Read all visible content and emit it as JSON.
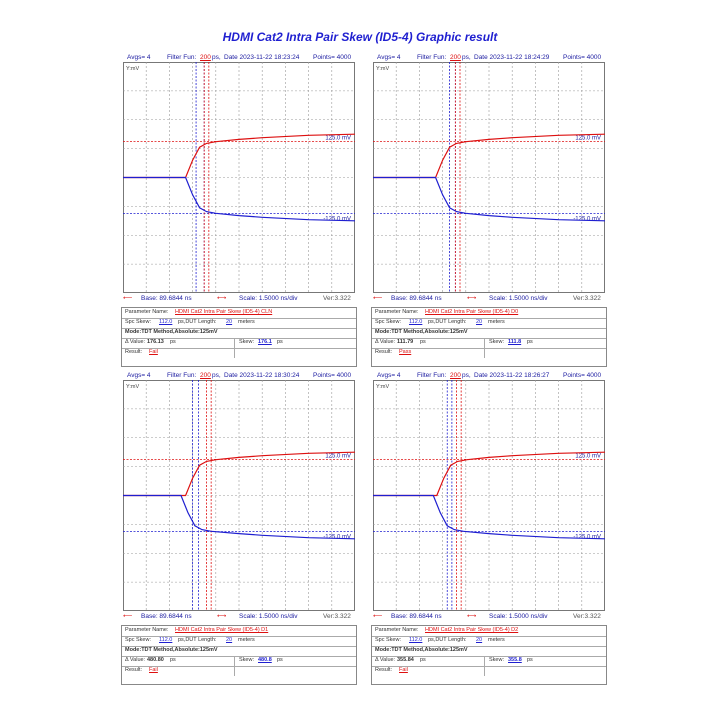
{
  "title": "HDMI Cat2 Intra Pair Skew (ID5-4) Graphic result",
  "chart_data": [
    {
      "type": "line",
      "avgs": "Avgs= 4",
      "filter_label": "Filter Fun:",
      "filter_value": "200",
      "filter_unit": "ps,",
      "date": "Date 2023-11-22 18:23:24",
      "points": "Points= 4000",
      "ylabel": "Y:mV",
      "ylim": [
        -400,
        400
      ],
      "yticks": [
        "400",
        "300",
        "200",
        "100",
        "0",
        "-100",
        "-200",
        "-300",
        "-400"
      ],
      "threshold_high_label": "125.0 mV",
      "threshold_low_label": "-125.0 mV",
      "base": "Base: 89.6844 ns",
      "scale": "Scale: 1.5000 ns/div",
      "ver": "Ver:3.322",
      "series": [
        {
          "color": "#dd1010",
          "x_div": [
            0,
            2.7,
            3.0,
            3.3,
            3.6,
            4.0,
            5.0,
            6.0,
            8.0,
            10.0
          ],
          "y": [
            0,
            0,
            60,
            105,
            118,
            124,
            132,
            138,
            146,
            150
          ]
        },
        {
          "color": "#1f1fd0",
          "x_div": [
            0,
            2.7,
            3.0,
            3.3,
            3.6,
            4.0,
            5.0,
            6.0,
            8.0,
            10.0
          ],
          "y": [
            0,
            0,
            -60,
            -105,
            -118,
            -124,
            -132,
            -138,
            -146,
            -150
          ]
        }
      ],
      "markers_x_div": {
        "blue": [
          3.15,
          3.5
        ],
        "red": [
          3.5,
          3.7
        ]
      },
      "param_label": "Parameter Name:",
      "param_name": "HDMI Cat2 Intra Pair Skew (ID5-4) CLN",
      "spc_label": "Spc Skew:",
      "spc_value": "112.0",
      "spc_unit": "ps,DUT Length:",
      "dut_value": "20",
      "dut_unit": "meters",
      "mode": "Mode:TDT Method,Absolute:125mV",
      "value_label": "Δ Value:",
      "value": "176.13",
      "value_unit": "ps",
      "skew_label": "Skew:",
      "skew_value": "176.1",
      "skew_unit": "ps",
      "result_label": "Result:",
      "result": "Fail"
    },
    {
      "type": "line",
      "avgs": "Avgs= 4",
      "filter_label": "Filter Fun:",
      "filter_value": "200",
      "filter_unit": "ps,",
      "date": "Date 2023-11-22 18:24:29",
      "points": "Points= 4000",
      "ylabel": "Y:mV",
      "ylim": [
        -400,
        400
      ],
      "yticks": [
        "400",
        "300",
        "200",
        "100",
        "0",
        "-100",
        "-200",
        "-300",
        "-400"
      ],
      "threshold_high_label": "125.0 mV",
      "threshold_low_label": "-125.0 mV",
      "base": "Base: 89.6844 ns",
      "scale": "Scale: 1.5000 ns/div",
      "ver": "Ver:3.322",
      "series": [
        {
          "color": "#dd1010",
          "x_div": [
            0,
            2.7,
            3.0,
            3.3,
            3.6,
            4.0,
            5.0,
            6.0,
            8.0,
            10.0
          ],
          "y": [
            0,
            0,
            60,
            105,
            118,
            124,
            132,
            138,
            146,
            150
          ]
        },
        {
          "color": "#1f1fd0",
          "x_div": [
            0,
            2.7,
            3.0,
            3.3,
            3.6,
            4.0,
            5.0,
            6.0,
            8.0,
            10.0
          ],
          "y": [
            0,
            0,
            -60,
            -105,
            -118,
            -124,
            -132,
            -138,
            -146,
            -150
          ]
        }
      ],
      "markers_x_div": {
        "blue": [
          3.3,
          3.55
        ],
        "red": [
          3.55,
          3.75
        ]
      },
      "param_label": "Parameter Name:",
      "param_name": "HDMI Cat2 Intra Pair Skew (ID5-4) D0",
      "spc_label": "Spc Skew:",
      "spc_value": "112.0",
      "spc_unit": "ps,DUT Length:",
      "dut_value": "20",
      "dut_unit": "meters",
      "mode": "Mode:TDT Method,Absolute:125mV",
      "value_label": "Δ Value:",
      "value": "111.79",
      "value_unit": "ps",
      "skew_label": "Skew:",
      "skew_value": "111.8",
      "skew_unit": "ps",
      "result_label": "Result:",
      "result": "Pass"
    },
    {
      "type": "line",
      "avgs": "Avgs= 4",
      "filter_label": "Filter Fun:",
      "filter_value": "200",
      "filter_unit": "ps,",
      "date": "Date 2023-11-22 18:30:24",
      "points": "Points= 4000",
      "ylabel": "Y:mV",
      "ylim": [
        -400,
        400
      ],
      "yticks": [
        "400",
        "300",
        "200",
        "100",
        "0",
        "-100",
        "-200",
        "-300",
        "-400"
      ],
      "threshold_high_label": "125.0 mV",
      "threshold_low_label": "-125.0 mV",
      "base": "Base: 89.6844 ns",
      "scale": "Scale: 1.5000 ns/div",
      "ver": "Ver:3.322",
      "series": [
        {
          "color": "#dd1010",
          "x_div": [
            0,
            2.7,
            3.0,
            3.3,
            3.6,
            4.0,
            5.0,
            6.0,
            8.0,
            10.0
          ],
          "y": [
            0,
            0,
            60,
            105,
            118,
            124,
            132,
            138,
            146,
            150
          ]
        },
        {
          "color": "#1f1fd0",
          "x_div": [
            0,
            2.5,
            2.8,
            3.1,
            3.4,
            3.8,
            5.0,
            6.0,
            8.0,
            10.0
          ],
          "y": [
            0,
            0,
            -60,
            -105,
            -118,
            -124,
            -132,
            -138,
            -146,
            -150
          ]
        }
      ],
      "markers_x_div": {
        "blue": [
          3.0,
          3.25
        ],
        "red": [
          3.6,
          3.8
        ]
      },
      "param_label": "Parameter Name:",
      "param_name": "HDMI Cat2 Intra Pair Skew (ID5-4) D1",
      "spc_label": "Spc Skew:",
      "spc_value": "112.0",
      "spc_unit": "ps,DUT Length:",
      "dut_value": "20",
      "dut_unit": "meters",
      "mode": "Mode:TDT Method,Absolute:125mV",
      "value_label": "Δ Value:",
      "value": "480.80",
      "value_unit": "ps",
      "skew_label": "Skew:",
      "skew_value": "480.8",
      "skew_unit": "ps",
      "result_label": "Result:",
      "result": "Fail"
    },
    {
      "type": "line",
      "avgs": "Avgs= 4",
      "filter_label": "Filter Fun:",
      "filter_value": "200",
      "filter_unit": "ps,",
      "date": "Date 2023-11-22 18:26:27",
      "points": "Points= 4000",
      "ylabel": "Y:mV",
      "ylim": [
        -400,
        400
      ],
      "yticks": [
        "400",
        "300",
        "200",
        "100",
        "0",
        "-100",
        "-200",
        "-300",
        "-400"
      ],
      "threshold_high_label": "125.0 mV",
      "threshold_low_label": "-125.0 mV",
      "base": "Base: 89.6844 ns",
      "scale": "Scale: 1.5000 ns/div",
      "ver": "Ver:3.322",
      "series": [
        {
          "color": "#dd1010",
          "x_div": [
            0,
            2.75,
            3.05,
            3.35,
            3.65,
            4.05,
            5.0,
            6.0,
            8.0,
            10.0
          ],
          "y": [
            0,
            0,
            60,
            105,
            118,
            124,
            132,
            138,
            146,
            150
          ]
        },
        {
          "color": "#1f1fd0",
          "x_div": [
            0,
            2.6,
            2.9,
            3.2,
            3.5,
            3.9,
            5.0,
            6.0,
            8.0,
            10.0
          ],
          "y": [
            0,
            0,
            -60,
            -105,
            -118,
            -124,
            -132,
            -138,
            -146,
            -150
          ]
        }
      ],
      "markers_x_div": {
        "blue": [
          3.2,
          3.4
        ],
        "red": [
          3.6,
          3.8
        ]
      },
      "param_label": "Parameter Name:",
      "param_name": "HDMI Cat2 Intra Pair Skew (ID5-4) D2",
      "spc_label": "Spc Skew:",
      "spc_value": "112.0",
      "spc_unit": "ps,DUT Length:",
      "dut_value": "20",
      "dut_unit": "meters",
      "mode": "Mode:TDT Method,Absolute:125mV",
      "value_label": "Δ Value:",
      "value": "355.84",
      "value_unit": "ps",
      "skew_label": "Skew:",
      "skew_value": "355.8",
      "skew_unit": "ps",
      "result_label": "Result:",
      "result": "Fail"
    }
  ]
}
